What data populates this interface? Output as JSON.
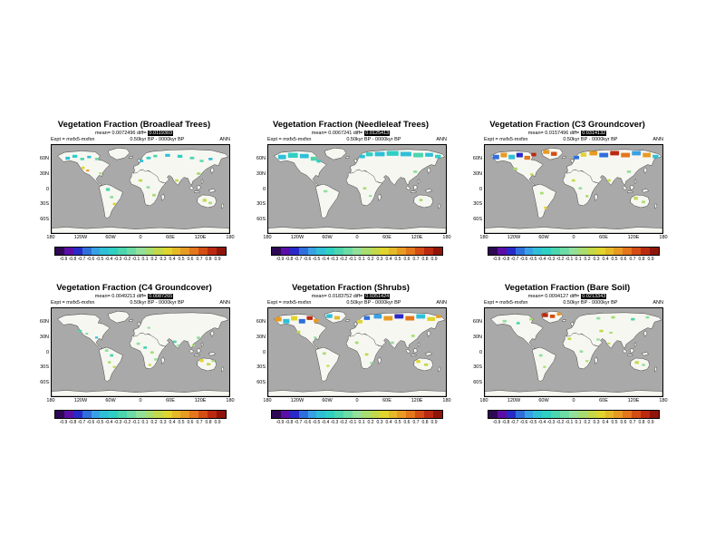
{
  "figure": {
    "colors": {
      "ocean": "#a9a9a9",
      "land": "#f7f7f2",
      "coastline": "#1a1a1a"
    }
  },
  "axes": {
    "lat": [
      "60N",
      "30N",
      "0",
      "30S",
      "60S"
    ],
    "lon": [
      "180",
      "120W",
      "60W",
      "0",
      "60E",
      "120E",
      "180"
    ]
  },
  "colorbar": {
    "colors": [
      "#2e0854",
      "#5b0ea6",
      "#2929c8",
      "#2f6fdb",
      "#38a1e6",
      "#2fc0d8",
      "#2fd0c4",
      "#4bd6ae",
      "#6cdca6",
      "#93e09a",
      "#a8dd72",
      "#c3d94a",
      "#e0d52e",
      "#e6b928",
      "#e89b22",
      "#e4761c",
      "#d44d14",
      "#bb2a10",
      "#8f150b"
    ],
    "ticks": [
      "-0.9",
      "-0.8",
      "-0.7",
      "-0.6",
      "-0.5",
      "-0.4",
      "-0.3",
      "-0.2",
      "-0.1",
      "0.1",
      "0.2",
      "0.3",
      "0.4",
      "0.5",
      "0.6",
      "0.7",
      "0.8",
      "0.9"
    ]
  },
  "panels": [
    {
      "title": "Vegetation Fraction (Broadleaf Trees)",
      "stats": "mean= 0.0072496 diff=",
      "stats_boxed": "0.0119303",
      "expt": "Expt = mxfx5-mxfxn",
      "period": "0.50kyr BP - 0000kyr BP",
      "season": "ANN",
      "patches": [
        [
          28,
          24,
          9,
          6,
          "#2fc0d8"
        ],
        [
          42,
          20,
          10,
          6,
          "#2fd0c4"
        ],
        [
          58,
          26,
          8,
          5,
          "#4bd6ae"
        ],
        [
          72,
          22,
          8,
          5,
          "#2fc0d8"
        ],
        [
          88,
          26,
          7,
          5,
          "#6cdca6"
        ],
        [
          60,
          44,
          7,
          5,
          "#e0d52e"
        ],
        [
          70,
          50,
          6,
          4,
          "#e89b22"
        ],
        [
          96,
          56,
          6,
          4,
          "#a8dd72"
        ],
        [
          178,
          30,
          8,
          5,
          "#2fc0d8"
        ],
        [
          192,
          24,
          9,
          5,
          "#2fd0c4"
        ],
        [
          206,
          20,
          8,
          5,
          "#4bd6ae"
        ],
        [
          230,
          18,
          10,
          6,
          "#2fc0d8"
        ],
        [
          255,
          20,
          10,
          6,
          "#2fd0c4"
        ],
        [
          280,
          24,
          9,
          5,
          "#4bd6ae"
        ],
        [
          300,
          30,
          8,
          5,
          "#6cdca6"
        ],
        [
          318,
          26,
          8,
          5,
          "#2fc0d8"
        ],
        [
          294,
          56,
          8,
          5,
          "#a8dd72"
        ],
        [
          250,
          70,
          7,
          5,
          "#c3d94a"
        ],
        [
          176,
          70,
          8,
          5,
          "#c3d94a"
        ],
        [
          192,
          84,
          7,
          5,
          "#93e09a"
        ],
        [
          204,
          100,
          7,
          5,
          "#a8dd72"
        ],
        [
          110,
          88,
          8,
          6,
          "#4bd6ae"
        ],
        [
          118,
          104,
          7,
          5,
          "#93e09a"
        ],
        [
          124,
          118,
          6,
          5,
          "#e0d52e"
        ],
        [
          306,
          110,
          8,
          6,
          "#c3d94a"
        ],
        [
          318,
          116,
          7,
          5,
          "#a8dd72"
        ]
      ]
    },
    {
      "title": "Vegetation Fraction (Needleleaf Trees)",
      "stats": "mean= 0.0067241 diff=",
      "stats_boxed": "0.0125413",
      "expt": "Expt = mxfx5-mxfxn",
      "period": "0.50kyr BP - 0000kyr BP",
      "season": "ANN",
      "patches": [
        [
          20,
          20,
          16,
          9,
          "#2fc0d8"
        ],
        [
          40,
          16,
          20,
          10,
          "#2fd0c4"
        ],
        [
          64,
          18,
          18,
          9,
          "#2fc0d8"
        ],
        [
          86,
          24,
          12,
          8,
          "#4bd6ae"
        ],
        [
          98,
          30,
          8,
          6,
          "#2fd0c4"
        ],
        [
          184,
          20,
          12,
          7,
          "#2fc0d8"
        ],
        [
          198,
          15,
          14,
          8,
          "#2fd0c4"
        ],
        [
          216,
          14,
          20,
          9,
          "#2fc0d8"
        ],
        [
          240,
          12,
          24,
          10,
          "#2fd0c4"
        ],
        [
          268,
          14,
          22,
          9,
          "#2fc0d8"
        ],
        [
          294,
          16,
          20,
          9,
          "#4bd6ae"
        ],
        [
          318,
          16,
          16,
          8,
          "#2fc0d8"
        ],
        [
          338,
          20,
          12,
          7,
          "#2fd0c4"
        ],
        [
          294,
          52,
          8,
          5,
          "#93e09a"
        ],
        [
          112,
          92,
          8,
          5,
          "#93e09a"
        ],
        [
          192,
          86,
          7,
          5,
          "#a8dd72"
        ],
        [
          204,
          102,
          6,
          4,
          "#93e09a"
        ],
        [
          306,
          110,
          7,
          5,
          "#a8dd72"
        ]
      ]
    },
    {
      "title": "Vegetation Fraction (C3 Groundcover)",
      "stats": "mean= 0.0157496 diff=",
      "stats_boxed": "0.0314132",
      "expt": "Expt = mxfx5-mxfxn",
      "period": "0.50kyr BP - 0000kyr BP",
      "season": "ANN",
      "patches": [
        [
          16,
          20,
          13,
          9,
          "#2f6fdb"
        ],
        [
          32,
          16,
          13,
          9,
          "#e89b22"
        ],
        [
          48,
          20,
          13,
          9,
          "#2fc0d8"
        ],
        [
          64,
          16,
          13,
          9,
          "#2929c8"
        ],
        [
          80,
          22,
          12,
          8,
          "#e4761c"
        ],
        [
          94,
          16,
          10,
          7,
          "#bb2a10"
        ],
        [
          118,
          10,
          13,
          8,
          "#e89b22"
        ],
        [
          134,
          14,
          12,
          8,
          "#d44d14"
        ],
        [
          180,
          22,
          11,
          7,
          "#2f6fdb"
        ],
        [
          194,
          16,
          12,
          8,
          "#e0d52e"
        ],
        [
          212,
          12,
          16,
          9,
          "#e89b22"
        ],
        [
          232,
          16,
          18,
          9,
          "#2f6fdb"
        ],
        [
          254,
          12,
          18,
          9,
          "#bb2a10"
        ],
        [
          276,
          16,
          18,
          9,
          "#e4761c"
        ],
        [
          298,
          12,
          18,
          9,
          "#38a1e6"
        ],
        [
          320,
          16,
          16,
          9,
          "#e89b22"
        ],
        [
          340,
          20,
          12,
          7,
          "#2fc0d8"
        ],
        [
          58,
          46,
          8,
          5,
          "#a8dd72"
        ],
        [
          92,
          58,
          6,
          4,
          "#c3d94a"
        ],
        [
          176,
          70,
          7,
          5,
          "#c3d94a"
        ],
        [
          190,
          86,
          7,
          5,
          "#93e09a"
        ],
        [
          204,
          102,
          6,
          5,
          "#a8dd72"
        ],
        [
          112,
          96,
          7,
          5,
          "#a8dd72"
        ],
        [
          120,
          126,
          6,
          5,
          "#e0d52e"
        ],
        [
          288,
          52,
          8,
          5,
          "#93e09a"
        ],
        [
          248,
          70,
          7,
          5,
          "#c3d94a"
        ],
        [
          302,
          106,
          8,
          6,
          "#c3d94a"
        ],
        [
          318,
          114,
          7,
          5,
          "#a8dd72"
        ]
      ]
    },
    {
      "title": "Vegetation Fraction (C4 Groundcover)",
      "stats": "mean= 0.0049213 diff=",
      "stats_boxed": "0.0087265",
      "expt": "Expt = mxfx5-mxfxn",
      "period": "0.50kyr BP - 0000kyr BP",
      "season": "ANN",
      "patches": [
        [
          54,
          44,
          7,
          5,
          "#4bd6ae"
        ],
        [
          68,
          50,
          6,
          4,
          "#93e09a"
        ],
        [
          88,
          58,
          6,
          4,
          "#2fc0d8"
        ],
        [
          194,
          38,
          6,
          4,
          "#93e09a"
        ],
        [
          108,
          84,
          7,
          5,
          "#93e09a"
        ],
        [
          118,
          94,
          7,
          5,
          "#4bd6ae"
        ],
        [
          114,
          108,
          6,
          5,
          "#a8dd72"
        ],
        [
          124,
          118,
          6,
          4,
          "#c3d94a"
        ],
        [
          172,
          70,
          7,
          5,
          "#93e09a"
        ],
        [
          186,
          78,
          7,
          5,
          "#4bd6ae"
        ],
        [
          200,
          88,
          7,
          5,
          "#a8dd72"
        ],
        [
          208,
          102,
          6,
          5,
          "#93e09a"
        ],
        [
          196,
          114,
          6,
          4,
          "#c3d94a"
        ],
        [
          246,
          66,
          7,
          5,
          "#4bd6ae"
        ],
        [
          254,
          74,
          6,
          4,
          "#93e09a"
        ],
        [
          284,
          74,
          6,
          4,
          "#a8dd72"
        ],
        [
          294,
          58,
          7,
          5,
          "#93e09a"
        ],
        [
          300,
          104,
          8,
          6,
          "#e0d52e"
        ],
        [
          314,
          112,
          8,
          5,
          "#c3d94a"
        ],
        [
          324,
          106,
          6,
          4,
          "#a8dd72"
        ]
      ]
    },
    {
      "title": "Vegetation Fraction (Shrubs)",
      "stats": "mean= 0.0183752 diff=",
      "stats_boxed": "0.0351424",
      "expt": "Expt = mxfx5-mxfxn",
      "period": "0.50kyr BP - 0000kyr BP",
      "season": "ANN",
      "patches": [
        [
          14,
          18,
          13,
          9,
          "#e89b22"
        ],
        [
          30,
          22,
          13,
          9,
          "#2fc0d8"
        ],
        [
          46,
          16,
          13,
          9,
          "#e0d52e"
        ],
        [
          62,
          22,
          13,
          9,
          "#2f6fdb"
        ],
        [
          78,
          16,
          12,
          8,
          "#bb2a10"
        ],
        [
          92,
          22,
          10,
          7,
          "#e89b22"
        ],
        [
          118,
          12,
          12,
          8,
          "#2fc0d8"
        ],
        [
          134,
          16,
          11,
          7,
          "#e6b928"
        ],
        [
          180,
          24,
          11,
          7,
          "#e0d52e"
        ],
        [
          194,
          16,
          12,
          8,
          "#2f6fdb"
        ],
        [
          214,
          12,
          16,
          9,
          "#38a1e6"
        ],
        [
          234,
          16,
          18,
          9,
          "#e89b22"
        ],
        [
          256,
          12,
          18,
          9,
          "#2929c8"
        ],
        [
          278,
          16,
          18,
          9,
          "#e4761c"
        ],
        [
          300,
          12,
          18,
          9,
          "#2fc0d8"
        ],
        [
          322,
          18,
          16,
          8,
          "#e0d52e"
        ],
        [
          340,
          14,
          10,
          6,
          "#e89b22"
        ],
        [
          58,
          46,
          7,
          5,
          "#c3d94a"
        ],
        [
          92,
          58,
          6,
          4,
          "#93e09a"
        ],
        [
          176,
          68,
          7,
          5,
          "#a8dd72"
        ],
        [
          196,
          92,
          7,
          5,
          "#c3d94a"
        ],
        [
          206,
          110,
          6,
          4,
          "#93e09a"
        ],
        [
          110,
          90,
          7,
          5,
          "#a8dd72"
        ],
        [
          118,
          116,
          6,
          4,
          "#c3d94a"
        ],
        [
          248,
          68,
          7,
          5,
          "#93e09a"
        ],
        [
          290,
          54,
          7,
          5,
          "#a8dd72"
        ],
        [
          300,
          106,
          8,
          6,
          "#e0d52e"
        ],
        [
          316,
          113,
          8,
          5,
          "#c3d94a"
        ]
      ]
    },
    {
      "title": "Vegetation Fraction (Bare Soil)",
      "stats": "mean= 0.0094127 diff=",
      "stats_boxed": "0.0213343",
      "expt": "Expt = mxfx5-mxfxn",
      "period": "0.50kyr BP - 0000kyr BP",
      "season": "ANN",
      "patches": [
        [
          116,
          10,
          12,
          8,
          "#bb2a10"
        ],
        [
          132,
          13,
          10,
          7,
          "#d44d14"
        ],
        [
          146,
          9,
          8,
          6,
          "#e89b22"
        ],
        [
          36,
          24,
          8,
          5,
          "#93e09a"
        ],
        [
          64,
          28,
          7,
          5,
          "#4bd6ae"
        ],
        [
          90,
          20,
          7,
          5,
          "#a8dd72"
        ],
        [
          226,
          18,
          8,
          5,
          "#93e09a"
        ],
        [
          256,
          16,
          8,
          5,
          "#a8dd72"
        ],
        [
          296,
          20,
          8,
          5,
          "#4bd6ae"
        ],
        [
          326,
          16,
          7,
          5,
          "#93e09a"
        ],
        [
          232,
          44,
          8,
          5,
          "#c3d94a"
        ],
        [
          252,
          48,
          7,
          4,
          "#a8dd72"
        ],
        [
          168,
          60,
          7,
          5,
          "#c3d94a"
        ],
        [
          192,
          86,
          7,
          5,
          "#93e09a"
        ],
        [
          204,
          106,
          6,
          4,
          "#a8dd72"
        ],
        [
          226,
          62,
          7,
          4,
          "#93e09a"
        ],
        [
          248,
          70,
          6,
          4,
          "#c3d94a"
        ],
        [
          110,
          94,
          7,
          5,
          "#93e09a"
        ],
        [
          118,
          118,
          6,
          4,
          "#a8dd72"
        ],
        [
          304,
          108,
          8,
          6,
          "#c3d94a"
        ],
        [
          318,
          114,
          7,
          4,
          "#93e09a"
        ]
      ]
    }
  ],
  "chart_data": [
    {
      "type": "heatmap",
      "title": "Vegetation Fraction (Broadleaf Trees)",
      "season": "ANN",
      "experiment": "mxfx5-mxfxn",
      "period": "0.50kyr BP - 0000kyr BP",
      "mean": 0.0072496,
      "diff": 0.0119303,
      "levels_min": -0.9,
      "levels_max": 0.9,
      "levels_step": 0.1,
      "summary": "Scattered small anomalies (mostly -0.3 to +0.3) over boreal N America and Eurasia, with patches in Africa, S America, India, Australia"
    },
    {
      "type": "heatmap",
      "title": "Vegetation Fraction (Needleleaf Trees)",
      "season": "ANN",
      "experiment": "mxfx5-mxfxn",
      "period": "0.50kyr BP - 0000kyr BP",
      "mean": 0.0067241,
      "diff": 0.0125413,
      "levels_min": -0.9,
      "levels_max": 0.9,
      "levels_step": 0.1,
      "summary": "Broad cyan/teal anomalies (about -0.2 to -0.4) across the boreal belt of Canada and Siberia; few tropical patches"
    },
    {
      "type": "heatmap",
      "title": "Vegetation Fraction (C3 Groundcover)",
      "season": "ANN",
      "experiment": "mxfx5-mxfxn",
      "period": "0.50kyr BP - 0000kyr BP",
      "mean": 0.0157496,
      "diff": 0.0314132,
      "levels_min": -0.9,
      "levels_max": 0.9,
      "levels_step": 0.1,
      "summary": "Strong mixed anomalies (-0.6 to +0.8) across high northern latitudes of N America, Greenland and Eurasia; scattered tropical patches"
    },
    {
      "type": "heatmap",
      "title": "Vegetation Fraction (C4 Groundcover)",
      "season": "ANN",
      "experiment": "mxfx5-mxfxn",
      "period": "0.50kyr BP - 0000kyr BP",
      "mean": 0.0049213,
      "diff": 0.0087265,
      "levels_min": -0.9,
      "levels_max": 0.9,
      "levels_step": 0.1,
      "summary": "Sparse small anomalies (±0.1 to 0.3) confined to the tropics: Africa, S America, India, SE Asia and N Australia"
    },
    {
      "type": "heatmap",
      "title": "Vegetation Fraction (Shrubs)",
      "season": "ANN",
      "experiment": "mxfx5-mxfxn",
      "period": "0.50kyr BP - 0000kyr BP",
      "mean": 0.0183752,
      "diff": 0.0351424,
      "levels_min": -0.9,
      "levels_max": 0.9,
      "levels_step": 0.1,
      "summary": "Dense multicoloured anomalies (-0.6 to +0.8) along the Arctic/boreal belt; scattered patches in tropics and Australia"
    },
    {
      "type": "heatmap",
      "title": "Vegetation Fraction (Bare Soil)",
      "season": "ANN",
      "experiment": "mxfx5-mxfxn",
      "period": "0.50kyr BP - 0000kyr BP",
      "mean": 0.0094127,
      "diff": 0.0213343,
      "levels_min": -0.9,
      "levels_max": 0.9,
      "levels_step": 0.1,
      "summary": "Mostly near zero; strong positive (+0.6 to +0.9) patches near Greenland/Arctic, small scattered anomalies elsewhere"
    }
  ]
}
